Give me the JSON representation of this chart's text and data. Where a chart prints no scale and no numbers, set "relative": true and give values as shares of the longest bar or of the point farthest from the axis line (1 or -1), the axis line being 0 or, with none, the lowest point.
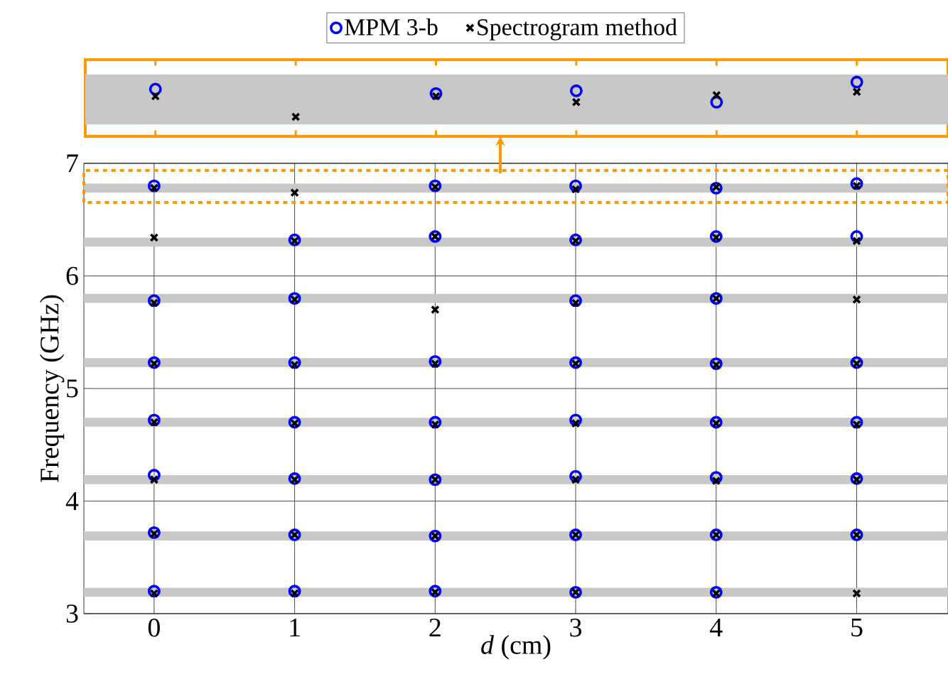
{
  "chart_data": [
    {
      "type": "scatter",
      "xlabel": "*d* (cm)",
      "ylabel": "Frequency (GHz)",
      "xlim": [
        -0.5,
        5.65
      ],
      "ylim": [
        3,
        7
      ],
      "xticks": [
        0,
        1,
        2,
        3,
        4,
        5
      ],
      "yticks": [
        3,
        4,
        5,
        6,
        7
      ],
      "grid": true,
      "legend": "top",
      "bands": [
        {
          "axis": "y",
          "from": 6.74,
          "to": 6.82,
          "color": "#c8c8c8"
        },
        {
          "axis": "y",
          "from": 6.26,
          "to": 6.34,
          "color": "#c8c8c8"
        },
        {
          "axis": "y",
          "from": 5.76,
          "to": 5.84,
          "color": "#c8c8c8"
        },
        {
          "axis": "y",
          "from": 5.19,
          "to": 5.27,
          "color": "#c8c8c8"
        },
        {
          "axis": "y",
          "from": 4.66,
          "to": 4.74,
          "color": "#c8c8c8"
        },
        {
          "axis": "y",
          "from": 4.15,
          "to": 4.23,
          "color": "#c8c8c8"
        },
        {
          "axis": "y",
          "from": 3.65,
          "to": 3.73,
          "color": "#c8c8c8"
        },
        {
          "axis": "y",
          "from": 3.15,
          "to": 3.23,
          "color": "#c8c8c8"
        }
      ],
      "series": [
        {
          "name": "MPM 3-b",
          "color": "#0000ff",
          "marker": "circle",
          "x": [
            0,
            0,
            0,
            0,
            0,
            0,
            0,
            1,
            1,
            1,
            1,
            1,
            1,
            1,
            2,
            2,
            2,
            2,
            2,
            2,
            2,
            3,
            3,
            3,
            3,
            3,
            3,
            3,
            3,
            4,
            4,
            4,
            4,
            4,
            4,
            4,
            4,
            5,
            5,
            5,
            5,
            5,
            5
          ],
          "values": [
            6.8,
            5.78,
            5.23,
            4.72,
            4.23,
            3.72,
            3.2,
            6.32,
            5.8,
            5.23,
            4.7,
            4.2,
            3.7,
            3.2,
            6.8,
            6.35,
            5.24,
            4.7,
            4.19,
            3.69,
            3.2,
            6.8,
            6.32,
            5.78,
            5.23,
            4.72,
            4.22,
            3.7,
            3.19,
            6.78,
            6.35,
            5.8,
            5.22,
            4.7,
            4.21,
            3.7,
            3.19,
            6.82,
            6.35,
            5.23,
            4.7,
            4.2,
            3.7
          ]
        },
        {
          "name": "Spectrogram method",
          "color": "#000000",
          "marker": "cross",
          "x": [
            0,
            0,
            0,
            0,
            0,
            0,
            0,
            0,
            1,
            1,
            1,
            1,
            1,
            1,
            1,
            1,
            2,
            2,
            2,
            2,
            2,
            2,
            2,
            2,
            3,
            3,
            3,
            3,
            3,
            3,
            3,
            3,
            4,
            4,
            4,
            4,
            4,
            4,
            4,
            4,
            5,
            5,
            5,
            5,
            5,
            5,
            5,
            5
          ],
          "values": [
            6.78,
            6.34,
            5.76,
            5.22,
            4.7,
            4.19,
            3.71,
            3.18,
            6.74,
            6.31,
            5.79,
            5.21,
            4.69,
            4.19,
            3.7,
            3.18,
            6.79,
            6.35,
            5.7,
            5.22,
            4.68,
            4.19,
            3.69,
            3.19,
            6.77,
            6.31,
            5.76,
            5.22,
            4.69,
            4.19,
            3.7,
            3.19,
            6.79,
            6.34,
            5.8,
            5.21,
            4.69,
            4.18,
            3.7,
            3.18,
            6.8,
            6.31,
            5.79,
            5.22,
            4.68,
            4.19,
            3.7,
            3.18
          ]
        }
      ]
    },
    {
      "type": "scatter",
      "relative": true,
      "xlim": [
        -0.5,
        5.65
      ],
      "xticks": [
        0,
        1,
        2,
        3,
        4,
        5
      ],
      "tick_labels": false,
      "bands": [
        {
          "axis": "y",
          "from": 0.22,
          "to": 1.14,
          "color": "#c8c8c8"
        }
      ],
      "series": [
        {
          "color": "#0000ff",
          "marker": "circle",
          "x": [
            0,
            2,
            3,
            4,
            5
          ],
          "values": [
            0.87,
            0.79,
            0.84,
            0.63,
            1
          ]
        },
        {
          "color": "#000000",
          "marker": "cross",
          "x": [
            0,
            1,
            2,
            3,
            4,
            5
          ],
          "values": [
            0.74,
            0.36,
            0.74,
            0.63,
            0.76,
            0.82
          ]
        }
      ]
    }
  ]
}
